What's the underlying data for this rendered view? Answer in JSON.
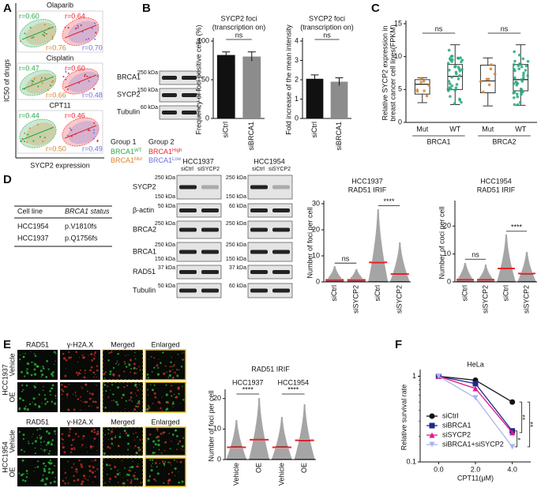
{
  "figure": {
    "A": {
      "label": "A",
      "y_label": "IC50 of drugs",
      "x_label": "SYCP2 expression",
      "drugs": [
        {
          "name": "Olaparib",
          "r": [
            "r=0.60",
            "r=0.64",
            "r=0.76",
            "r=0.70"
          ]
        },
        {
          "name": "Cisplatin",
          "r": [
            "r=0.47",
            "r=0.60",
            "r=0.66",
            "r=0.48"
          ]
        },
        {
          "name": "CPT11",
          "r": [
            "r=0.44",
            "r=0.46",
            "r=0.50",
            "r=0.49"
          ]
        }
      ],
      "legend": {
        "groups": [
          "Group 1",
          "Group 2"
        ],
        "items": [
          {
            "name": "BRCA1",
            "sup": "WT",
            "color": "#26a84a"
          },
          {
            "name": "BRCA1",
            "sup": "High",
            "color": "#e8232a"
          },
          {
            "name": "BRCA1",
            "sup": "Mut",
            "color": "#d9822b"
          },
          {
            "name": "BRCA1",
            "sup": "Low",
            "color": "#6b6fe0"
          }
        ]
      }
    },
    "B": {
      "label": "B",
      "blot": [
        {
          "name": "BRCA1",
          "marker": "250 kDa"
        },
        {
          "name": "SYCP2",
          "marker": "150 kDa"
        },
        {
          "name": "Tubulin",
          "marker": "60 kDa"
        }
      ]
    },
    "C": {
      "label": "C"
    },
    "D": {
      "label": "D",
      "table": {
        "header": [
          "Cell line",
          "BRCA1 status"
        ],
        "rows": [
          [
            "HCC1954",
            "p.V1810fs"
          ],
          [
            "HCC1937",
            "p.Q1756fs"
          ]
        ]
      },
      "blot": {
        "cells": [
          "HCC1937",
          "HCC1954"
        ],
        "lanes": [
          "siCtrl",
          "siSYCP2"
        ],
        "rows": [
          {
            "name": "SYCP2",
            "left": [
              "250 kDa",
              "150 kDa"
            ],
            "right": [
              "250 kDa",
              "150 kDa"
            ]
          },
          {
            "name": "β-actin",
            "left": [
              "50 kDa"
            ],
            "right": [
              "60 kDa"
            ]
          },
          {
            "name": "BRCA2",
            "left": [
              "250 kDa"
            ],
            "right": [
              "250 kDa"
            ]
          },
          {
            "name": "BRCA1",
            "left": [
              "250 kDa",
              "150 kDa"
            ],
            "right": [
              "250 kDa",
              "150 kDa"
            ]
          },
          {
            "name": "RAD51",
            "left": [
              "37 kDa"
            ],
            "right": [
              "37 kDa"
            ]
          },
          {
            "name": "Tubulin",
            "left": [
              "50 kDa"
            ],
            "right": [
              "60 kDa"
            ]
          }
        ]
      }
    },
    "E": {
      "label": "E",
      "channels": [
        "RAD51",
        "γ-H2A.X",
        "Merged",
        "Enlarged"
      ],
      "cells": [
        "HCC1937",
        "HCC1954"
      ],
      "conditions": [
        "Vehicle",
        "OE"
      ]
    },
    "F": {
      "label": "F"
    }
  },
  "chart_data": [
    {
      "type": "bar",
      "title": "SYCP2 foci",
      "subtitle": "(transcription on)",
      "y_label": "Frequency of foci positive cells (%)",
      "categories": [
        "siCtrl",
        "siBRCA1"
      ],
      "values": [
        82,
        80
      ],
      "errors": [
        4,
        6
      ],
      "colors": [
        "#111111",
        "#8c8c8c"
      ],
      "ylim": [
        0,
        100
      ],
      "yticks": [
        0,
        50,
        100
      ],
      "annotations": [
        "ns"
      ]
    },
    {
      "type": "bar",
      "title": "SYCP2 foci",
      "subtitle": "(transcription on)",
      "y_label": "Fold increase of the mean intensity",
      "categories": [
        "siCtrl",
        "siBRCA1"
      ],
      "values": [
        2.05,
        1.9
      ],
      "errors": [
        0.2,
        0.2
      ],
      "colors": [
        "#111111",
        "#8c8c8c"
      ],
      "ylim": [
        0,
        4
      ],
      "yticks": [
        0,
        1,
        2,
        3,
        4
      ],
      "annotations": [
        "ns"
      ]
    },
    {
      "type": "box",
      "y_label": "Relative SYCP2 expression in",
      "y_label2": "breast cancer cell lines(FPKM)",
      "categories": [
        "Mut",
        "WT",
        "Mut",
        "WT"
      ],
      "groups": [
        "BRCA1",
        "BRCA2"
      ],
      "colors": [
        "#d9822b",
        "#26a87a",
        "#d9822b",
        "#26a87a"
      ],
      "boxes": [
        {
          "min": 3,
          "q1": 4.3,
          "median": 5.8,
          "q3": 6.5,
          "max": 6.8
        },
        {
          "min": 2.7,
          "q1": 5,
          "median": 7,
          "q3": 8.8,
          "max": 11.8
        },
        {
          "min": 2.5,
          "q1": 4.5,
          "median": 6.3,
          "q3": 8.7,
          "max": 9.8
        },
        {
          "min": 2.6,
          "q1": 4.8,
          "median": 6.5,
          "q3": 8.8,
          "max": 11.8
        }
      ],
      "ylim": [
        0,
        15
      ],
      "yticks": [
        0,
        5,
        10,
        15
      ],
      "annotations": [
        "ns",
        "ns"
      ]
    },
    {
      "type": "dot",
      "title": "HCC1937",
      "subtitle": "RAD51 IRIF",
      "y_label": "Number of foci per cell",
      "categories": [
        "siCtrl",
        "siSYCP2",
        "siCtrl",
        "siSYCP2"
      ],
      "means": [
        0.8,
        0.8,
        7.5,
        3
      ],
      "max": [
        6,
        5,
        28,
        15
      ],
      "ylim": [
        0,
        30
      ],
      "yticks": [
        0,
        10,
        20,
        30
      ],
      "annotations": [
        "ns",
        "****"
      ]
    },
    {
      "type": "dot",
      "title": "HCC1954",
      "subtitle": "RAD51 IRIF",
      "y_label": "Number of coci per cell",
      "categories": [
        "siCtrl",
        "siSYCP2",
        "siCtrl",
        "siSYCP2"
      ],
      "means": [
        0.8,
        0.8,
        4.8,
        3
      ],
      "max": [
        7,
        6,
        17,
        11
      ],
      "ylim": [
        0,
        28
      ],
      "yticks": [
        0,
        10,
        20
      ],
      "annotations": [
        "ns",
        "****"
      ]
    },
    {
      "type": "dot",
      "title": "RAD51 IRIF",
      "y_label": "Number of foci per cell",
      "groups": [
        "HCC1937",
        "HCC1954"
      ],
      "categories": [
        "Vehicle",
        "OE",
        "Vehicle",
        "OE"
      ],
      "means": [
        4,
        6.5,
        4,
        6.3
      ],
      "max": [
        13,
        20,
        14,
        18
      ],
      "ylim": [
        0,
        22
      ],
      "yticks": [
        0,
        10,
        20
      ],
      "annotations": [
        "****",
        "****"
      ]
    },
    {
      "type": "line",
      "title": "HeLa",
      "x_label": "CPT11(μM)",
      "y_label": "Relative survival rate",
      "log_y": true,
      "legend": "lower left",
      "x": [
        0,
        2,
        4
      ],
      "xlim": [
        -1,
        5
      ],
      "xticks": [
        {
          "value": 0,
          "label": "0.0"
        },
        {
          "value": 2,
          "label": "2.0"
        },
        {
          "value": 4,
          "label": "4.0"
        }
      ],
      "ylim": [
        0.1,
        1.1
      ],
      "yticks": [
        0.1,
        1
      ],
      "series": [
        {
          "name": "siCtrl",
          "color": "#111111",
          "marker": "circle",
          "values": [
            1,
            0.9,
            0.5
          ]
        },
        {
          "name": "siBRCA1",
          "color": "#1f2a8a",
          "marker": "square",
          "values": [
            1,
            0.82,
            0.23
          ]
        },
        {
          "name": "siSYCP2",
          "color": "#e0168c",
          "marker": "triangle",
          "values": [
            1,
            0.72,
            0.22
          ]
        },
        {
          "name": "siBRCA1+siSYCP2",
          "color": "#a9b4ec",
          "marker": "down",
          "values": [
            1,
            0.56,
            0.15
          ]
        }
      ],
      "annotations": [
        "**",
        "**",
        "*"
      ]
    }
  ]
}
